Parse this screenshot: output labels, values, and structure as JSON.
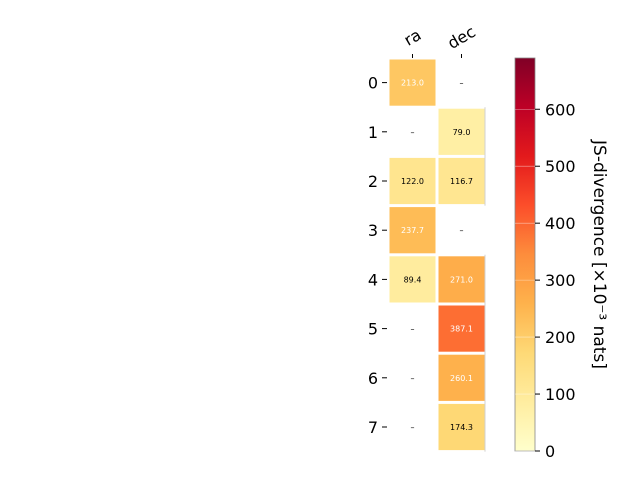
{
  "chart_data": {
    "type": "heatmap",
    "columns": [
      "ra",
      "dec"
    ],
    "rows": [
      "0",
      "1",
      "2",
      "3",
      "4",
      "5",
      "6",
      "7"
    ],
    "values": [
      [
        213.0,
        null
      ],
      [
        null,
        79.0
      ],
      [
        122.0,
        116.7
      ],
      [
        237.7,
        null
      ],
      [
        89.4,
        271.0
      ],
      [
        null,
        387.1
      ],
      [
        null,
        260.1
      ],
      [
        null,
        174.3
      ]
    ],
    "missing_label": "–",
    "colorbar": {
      "label": "JS-divergence [×10⁻³ nats]",
      "range": [
        0,
        690
      ],
      "ticks": [
        0,
        100,
        200,
        300,
        400,
        500,
        600
      ],
      "colormap": "YlOrRd",
      "stops": [
        "#ffffcc",
        "#ffeda0",
        "#fed976",
        "#feb24c",
        "#fd8d3c",
        "#fc4e2a",
        "#e31a1c",
        "#bd0026",
        "#800026"
      ]
    }
  }
}
